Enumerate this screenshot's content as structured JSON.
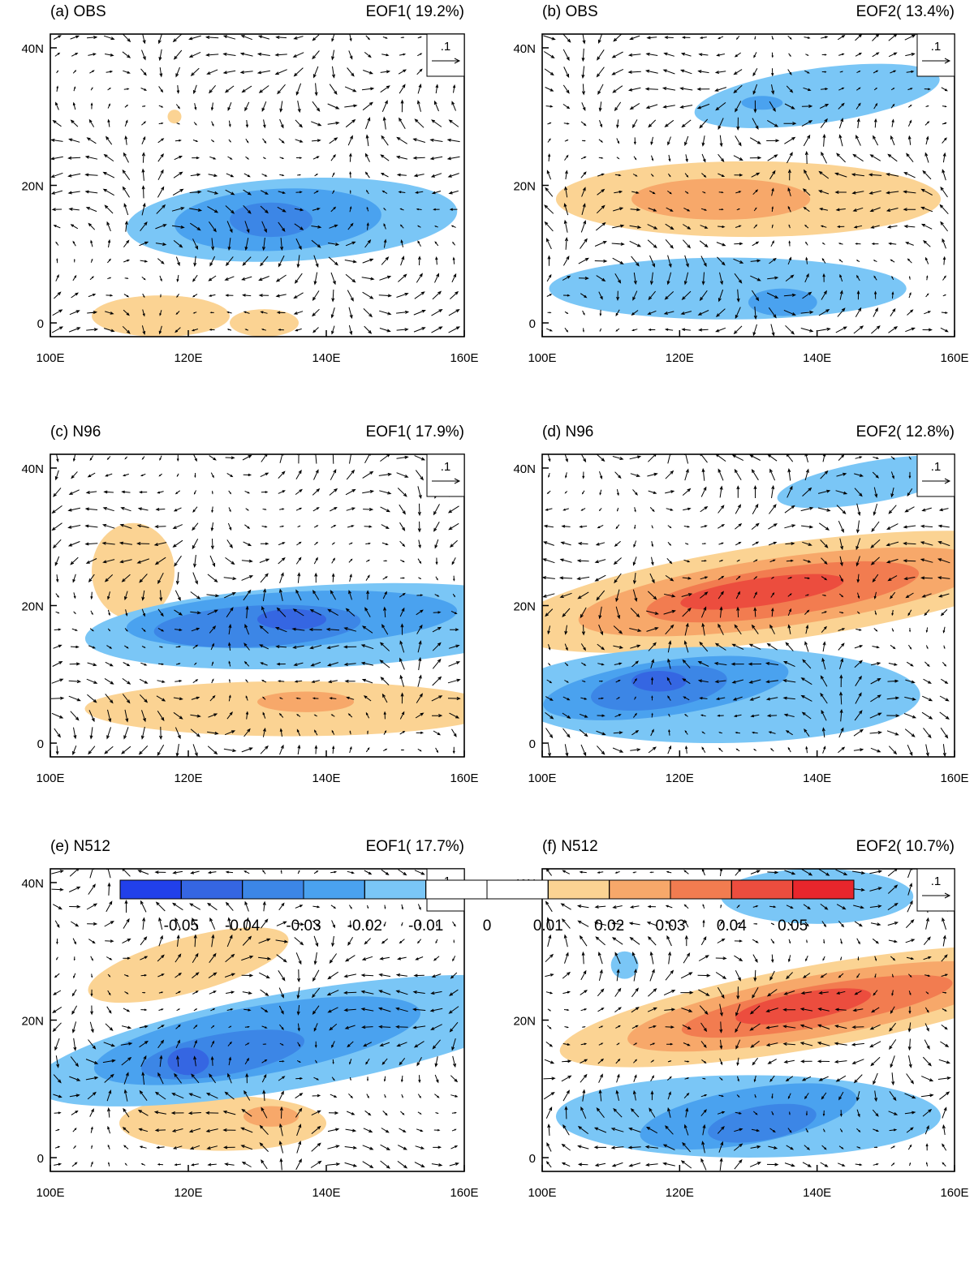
{
  "figure": {
    "panels": [
      {
        "label": "(a) OBS",
        "title": "EOF1( 19.2%)"
      },
      {
        "label": "(b) OBS",
        "title": "EOF2( 13.4%)"
      },
      {
        "label": "(c) N96",
        "title": "EOF1( 17.9%)"
      },
      {
        "label": "(d) N96",
        "title": "EOF2( 12.8%)"
      },
      {
        "label": "(e) N512",
        "title": "EOF1( 17.7%)"
      },
      {
        "label": "(f) N512",
        "title": "EOF2( 10.7%)"
      }
    ],
    "xlim": [
      100,
      160
    ],
    "ylim": [
      -2,
      42
    ],
    "xticks": [
      {
        "value": 100,
        "label": "100E"
      },
      {
        "value": 120,
        "label": "120E"
      },
      {
        "value": 140,
        "label": "140E"
      },
      {
        "value": 160,
        "label": "160E"
      }
    ],
    "yticks": [
      0,
      {
        "value": 20,
        "label": "20N"
      },
      {
        "value": 40,
        "label": "40N"
      }
    ],
    "ref_vector": {
      "value": 0.1,
      "label": ".1"
    },
    "colorbar": {
      "levels": [
        -0.05,
        -0.04,
        -0.03,
        -0.02,
        -0.01,
        0,
        0.01,
        0.02,
        0.03,
        0.04,
        0.05
      ],
      "colors": [
        "#2140ea",
        "#3566e2",
        "#3c86e6",
        "#4aa2ef",
        "#7ac6f6",
        "#ffffff",
        "#ffffff",
        "#fbd393",
        "#f7a86a",
        "#f27c50",
        "#ec4d3e",
        "#e8262c"
      ]
    }
  }
}
